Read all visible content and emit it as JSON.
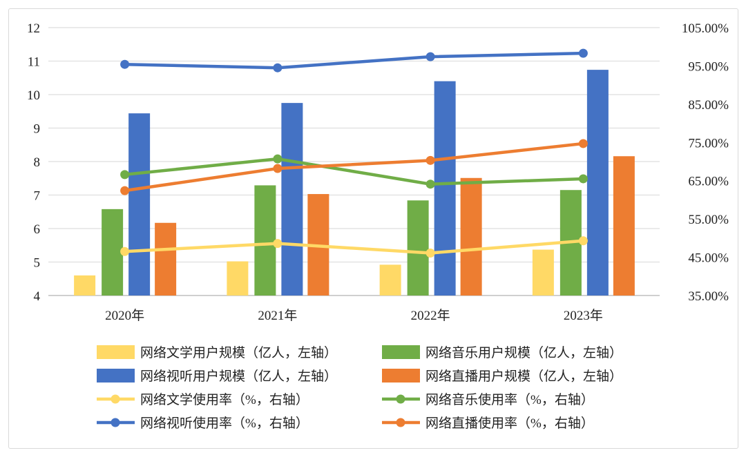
{
  "chart_data": {
    "type": "bar+line",
    "categories": [
      "2020年",
      "2021年",
      "2022年",
      "2023年"
    ],
    "left_axis": {
      "ylim": [
        4,
        12
      ],
      "ticks": [
        "4",
        "5",
        "6",
        "7",
        "8",
        "9",
        "10",
        "11",
        "12"
      ]
    },
    "right_axis": {
      "ylim": [
        35,
        105
      ],
      "ticks": [
        "35.00%",
        "45.00%",
        "55.00%",
        "65.00%",
        "75.00%",
        "85.00%",
        "95.00%",
        "105.00%"
      ]
    },
    "grid": true,
    "legend": "bottom",
    "bar_series": [
      {
        "name": "网络文学用户规模（亿人，左轴）",
        "color": "#FFD966",
        "values": [
          4.6,
          5.02,
          4.92,
          5.37
        ]
      },
      {
        "name": "网络音乐用户规模（亿人，左轴）",
        "color": "#70AD47",
        "values": [
          6.58,
          7.29,
          6.84,
          7.15
        ]
      },
      {
        "name": "网络视听用户规模（亿人，左轴）",
        "color": "#4472C4",
        "values": [
          9.44,
          9.75,
          10.4,
          10.74
        ]
      },
      {
        "name": "网络直播用户规模（亿人，左轴）",
        "color": "#ED7D31",
        "values": [
          6.17,
          7.03,
          7.51,
          8.16
        ]
      }
    ],
    "line_series": [
      {
        "name": "网络文学使用率（%，右轴）",
        "color": "#FFD966",
        "values": [
          46.5,
          48.6,
          46.1,
          49.3
        ]
      },
      {
        "name": "网络音乐使用率（%，右轴）",
        "color": "#70AD47",
        "values": [
          66.6,
          70.7,
          64.1,
          65.5
        ]
      },
      {
        "name": "网络视听使用率（%，右轴）",
        "color": "#4472C4",
        "values": [
          95.4,
          94.5,
          97.4,
          98.3
        ]
      },
      {
        "name": "网络直播使用率（%，右轴）",
        "color": "#ED7D31",
        "values": [
          62.4,
          68.2,
          70.3,
          74.7
        ]
      }
    ]
  }
}
